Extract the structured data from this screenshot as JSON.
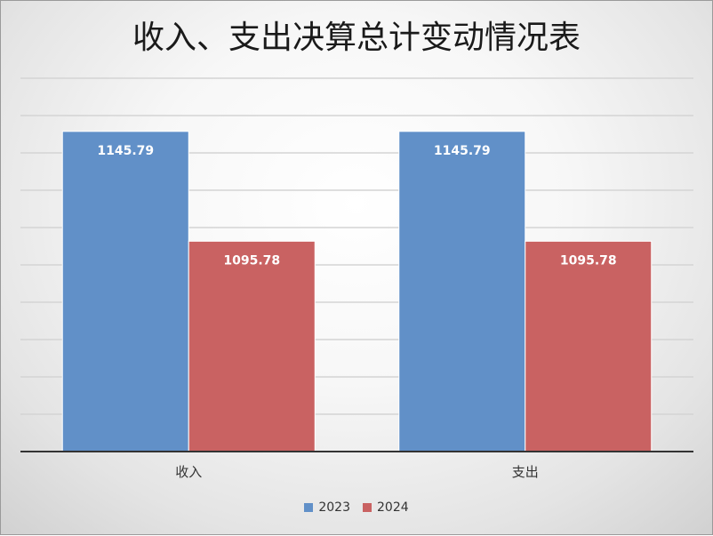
{
  "chart_data": {
    "type": "bar",
    "title": "收入、支出决算总计变动情况表",
    "categories": [
      "收入",
      "支出"
    ],
    "series": [
      {
        "name": "2023",
        "values": [
          1145.79,
          1145.79
        ],
        "color": "#6190C8"
      },
      {
        "name": "2024",
        "values": [
          1095.78,
          1095.78
        ],
        "color": "#C96262"
      }
    ],
    "data_labels": [
      [
        "1145.79",
        "1145.79"
      ],
      [
        "1095.78",
        "1095.78"
      ]
    ],
    "ylim": [
      1000,
      1170
    ],
    "grid": true,
    "legend_position": "bottom"
  }
}
